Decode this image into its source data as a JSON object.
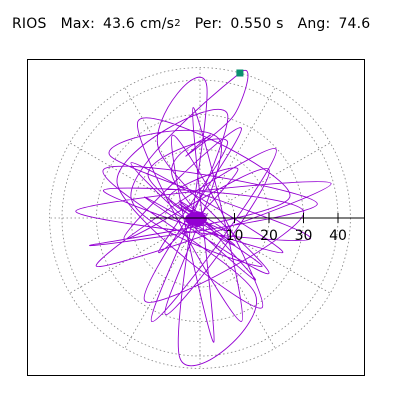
{
  "header": {
    "station": "RIOS",
    "max_label": "Max:",
    "max_value": "43.6",
    "max_unit": "cm/s",
    "max_unit_exp": "2",
    "per_label": "Per:",
    "per_value": "0.550 s",
    "ang_label": "Ang:",
    "ang_value": "74.6"
  },
  "colors": {
    "trace": "#9400d3",
    "peak_marker": "#0a9070",
    "grid": "#808080",
    "axis": "#000000",
    "frame": "#000000",
    "background": "#ffffff"
  },
  "chart_data": {
    "type": "scatter",
    "subtype": "polar-orbit",
    "title": "",
    "xlabel": "",
    "ylabel": "",
    "radial_ticks": [
      10,
      20,
      30,
      40
    ],
    "radial_tick_labels": [
      "10",
      "20",
      "30",
      "40"
    ],
    "rlim": [
      0,
      43.6
    ],
    "grid": true,
    "grid_style": "dotted",
    "peak": {
      "r": 43.6,
      "angle_deg": 74.6
    },
    "series": [
      {
        "points": [
          [
            0,
            0
          ],
          [
            2,
            1
          ],
          [
            -3,
            2
          ],
          [
            4,
            -3
          ],
          [
            -6,
            5
          ],
          [
            8,
            -4
          ],
          [
            -9,
            6
          ],
          [
            11,
            14
          ],
          [
            -12,
            -10
          ],
          [
            8,
            22
          ],
          [
            -15,
            12
          ],
          [
            18,
            -14
          ],
          [
            -20,
            6
          ],
          [
            11.5,
            42
          ],
          [
            10,
            30
          ],
          [
            -4,
            18
          ],
          [
            3,
            24
          ],
          [
            -8,
            12
          ],
          [
            16,
            -18
          ],
          [
            -20,
            16
          ],
          [
            24,
            -10
          ],
          [
            -28,
            8
          ],
          [
            30,
            2
          ],
          [
            -16,
            -24
          ],
          [
            12,
            26
          ],
          [
            -22,
            -6
          ],
          [
            20,
            14
          ],
          [
            -10,
            -28
          ],
          [
            6,
            22
          ],
          [
            -26,
            18
          ],
          [
            32,
            -6
          ],
          [
            -36,
            2
          ],
          [
            38,
            10
          ],
          [
            -30,
            -14
          ],
          [
            22,
            20
          ],
          [
            -14,
            -30
          ],
          [
            8,
            30
          ],
          [
            -24,
            10
          ],
          [
            18,
            -26
          ],
          [
            -8,
            24
          ],
          [
            4,
            -36
          ],
          [
            -2,
            32
          ],
          [
            12,
            -30
          ],
          [
            -18,
            28
          ],
          [
            26,
            6
          ],
          [
            -32,
            -8
          ],
          [
            34,
            4
          ],
          [
            -28,
            14
          ],
          [
            16,
            -22
          ],
          [
            -6,
            -40
          ],
          [
            2,
            38
          ],
          [
            -12,
            20
          ],
          [
            20,
            -16
          ],
          [
            -16,
            6
          ],
          [
            10,
            -8
          ],
          [
            -6,
            4
          ],
          [
            3,
            -2
          ],
          [
            0,
            0
          ]
        ]
      }
    ]
  }
}
